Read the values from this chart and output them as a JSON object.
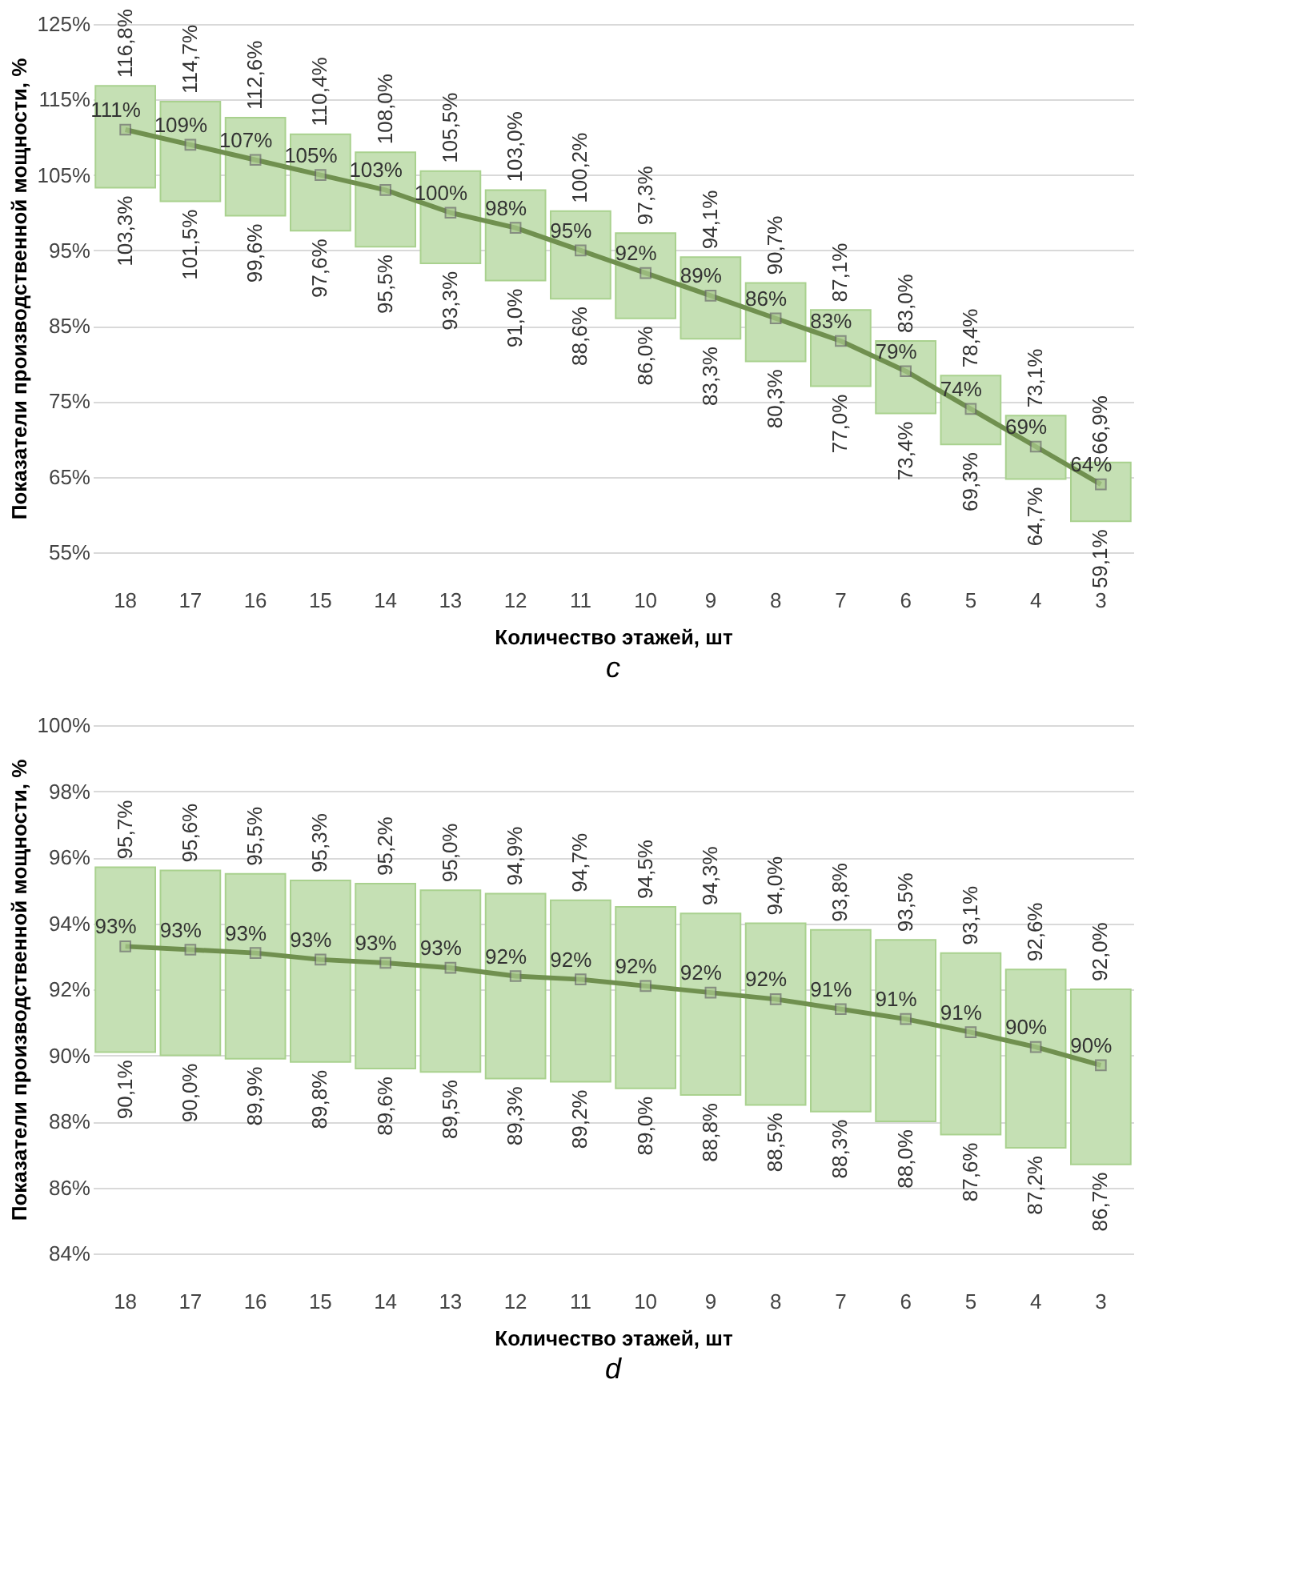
{
  "chart_data": [
    {
      "type": "bar",
      "title": "c",
      "xlabel": "Количество этажей, шт",
      "ylabel": "Показатели производственной мощности, %",
      "categories": [
        "18",
        "17",
        "16",
        "15",
        "14",
        "13",
        "12",
        "11",
        "10",
        "9",
        "8",
        "7",
        "6",
        "5",
        "4",
        "3"
      ],
      "series": [
        {
          "type": "bar",
          "color": "#c5e0b4",
          "base": [
            103.3,
            101.5,
            99.6,
            97.6,
            95.5,
            93.3,
            91.0,
            88.6,
            86.0,
            83.3,
            80.3,
            77.0,
            73.4,
            69.3,
            64.7,
            59.1
          ],
          "values": [
            13.5,
            13.2,
            13.0,
            12.8,
            12.5,
            12.2,
            12.0,
            11.6,
            11.3,
            10.8,
            10.4,
            10.1,
            9.6,
            9.1,
            8.4,
            7.8
          ]
        },
        {
          "type": "line",
          "color": "#70904f",
          "marker": "square",
          "values": [
            111,
            109,
            107,
            105,
            103,
            100,
            98,
            95,
            92,
            89,
            86,
            83,
            79,
            74,
            69,
            64
          ],
          "value_labels": [
            "111%",
            "109%",
            "107%",
            "105%",
            "103%",
            "100%",
            "98%",
            "95%",
            "92%",
            "89%",
            "86%",
            "83%",
            "79%",
            "74%",
            "69%",
            "64%"
          ]
        }
      ],
      "ylim": [
        55,
        125
      ],
      "yticks": [
        {
          "value": 55,
          "label": "55%"
        },
        {
          "value": 65,
          "label": "65%"
        },
        {
          "value": 75,
          "label": "75%"
        },
        {
          "value": 85,
          "label": "85%"
        },
        {
          "value": 95,
          "label": "95%"
        },
        {
          "value": 105,
          "label": "105%"
        },
        {
          "value": 115,
          "label": "115%"
        },
        {
          "value": 125,
          "label": "125%"
        }
      ],
      "grid": "y",
      "annotations": [
        {
          "text": "116,8%",
          "x": "18",
          "y": 116.8
        },
        {
          "text": "103,3%",
          "x": "18",
          "y": 103.3
        },
        {
          "text": "114,7%",
          "x": "17",
          "y": 114.7
        },
        {
          "text": "101,5%",
          "x": "17",
          "y": 101.5
        },
        {
          "text": "112,6%",
          "x": "16",
          "y": 112.6
        },
        {
          "text": "99,6%",
          "x": "16",
          "y": 99.6
        },
        {
          "text": "110,4%",
          "x": "15",
          "y": 110.4
        },
        {
          "text": "97,6%",
          "x": "15",
          "y": 97.6
        },
        {
          "text": "108,0%",
          "x": "14",
          "y": 108.0
        },
        {
          "text": "95,5%",
          "x": "14",
          "y": 95.5
        },
        {
          "text": "105,5%",
          "x": "13",
          "y": 105.5
        },
        {
          "text": "93,3%",
          "x": "13",
          "y": 93.3
        },
        {
          "text": "103,0%",
          "x": "12",
          "y": 103.0
        },
        {
          "text": "91,0%",
          "x": "12",
          "y": 91.0
        },
        {
          "text": "100,2%",
          "x": "11",
          "y": 100.2
        },
        {
          "text": "88,6%",
          "x": "11",
          "y": 88.6
        },
        {
          "text": "97,3%",
          "x": "10",
          "y": 97.3
        },
        {
          "text": "86,0%",
          "x": "10",
          "y": 86.0
        },
        {
          "text": "94,1%",
          "x": "9",
          "y": 94.1
        },
        {
          "text": "83,3%",
          "x": "9",
          "y": 83.3
        },
        {
          "text": "90,7%",
          "x": "8",
          "y": 90.7
        },
        {
          "text": "80,3%",
          "x": "8",
          "y": 80.3
        },
        {
          "text": "87,1%",
          "x": "7",
          "y": 87.1
        },
        {
          "text": "77,0%",
          "x": "7",
          "y": 77.0
        },
        {
          "text": "83,0%",
          "x": "6",
          "y": 83.0
        },
        {
          "text": "73,4%",
          "x": "6",
          "y": 73.4
        },
        {
          "text": "78,4%",
          "x": "5",
          "y": 78.4
        },
        {
          "text": "69,3%",
          "x": "5",
          "y": 69.3
        },
        {
          "text": "73,1%",
          "x": "4",
          "y": 73.1
        },
        {
          "text": "64,7%",
          "x": "4",
          "y": 64.7
        },
        {
          "text": "66,9%",
          "x": "3",
          "y": 66.9
        },
        {
          "text": "59,1%",
          "x": "3",
          "y": 59.1
        }
      ]
    },
    {
      "type": "bar",
      "title": "d",
      "xlabel": "Количество этажей, шт",
      "ylabel": "Показатели производственной мощности, %",
      "categories": [
        "18",
        "17",
        "16",
        "15",
        "14",
        "13",
        "12",
        "11",
        "10",
        "9",
        "8",
        "7",
        "6",
        "5",
        "4",
        "3"
      ],
      "series": [
        {
          "type": "bar",
          "color": "#c5e0b4",
          "base": [
            90.1,
            90.0,
            89.9,
            89.8,
            89.6,
            89.5,
            89.3,
            89.2,
            89.0,
            88.8,
            88.5,
            88.3,
            88.0,
            87.6,
            87.2,
            86.7
          ],
          "values": [
            5.6,
            5.6,
            5.6,
            5.5,
            5.6,
            5.5,
            5.6,
            5.5,
            5.5,
            5.5,
            5.5,
            5.5,
            5.5,
            5.5,
            5.4,
            5.3
          ]
        },
        {
          "type": "line",
          "color": "#70904f",
          "marker": "square",
          "values": [
            93.3,
            93.2,
            93.1,
            92.9,
            92.8,
            92.65,
            92.4,
            92.3,
            92.1,
            91.9,
            91.7,
            91.4,
            91.1,
            90.7,
            90.25,
            89.7
          ],
          "value_labels": [
            "93%",
            "93%",
            "93%",
            "93%",
            "93%",
            "93%",
            "92%",
            "92%",
            "92%",
            "92%",
            "92%",
            "91%",
            "91%",
            "91%",
            "90%",
            "90%"
          ]
        }
      ],
      "ylim": [
        84,
        100
      ],
      "yticks": [
        {
          "value": 84,
          "label": "84%"
        },
        {
          "value": 86,
          "label": "86%"
        },
        {
          "value": 88,
          "label": "88%"
        },
        {
          "value": 90,
          "label": "90%"
        },
        {
          "value": 92,
          "label": "92%"
        },
        {
          "value": 94,
          "label": "94%"
        },
        {
          "value": 96,
          "label": "96%"
        },
        {
          "value": 98,
          "label": "98%"
        },
        {
          "value": 100,
          "label": "100%"
        }
      ],
      "grid": "y",
      "annotations": [
        {
          "text": "95,7%",
          "x": "18",
          "y": 95.7
        },
        {
          "text": "90,1%",
          "x": "18",
          "y": 90.1
        },
        {
          "text": "95,6%",
          "x": "17",
          "y": 95.6
        },
        {
          "text": "90,0%",
          "x": "17",
          "y": 90.0
        },
        {
          "text": "95,5%",
          "x": "16",
          "y": 95.5
        },
        {
          "text": "89,9%",
          "x": "16",
          "y": 89.9
        },
        {
          "text": "95,3%",
          "x": "15",
          "y": 95.3
        },
        {
          "text": "89,8%",
          "x": "15",
          "y": 89.8
        },
        {
          "text": "95,2%",
          "x": "14",
          "y": 95.2
        },
        {
          "text": "89,6%",
          "x": "14",
          "y": 89.6
        },
        {
          "text": "95,0%",
          "x": "13",
          "y": 95.0
        },
        {
          "text": "89,5%",
          "x": "13",
          "y": 89.5
        },
        {
          "text": "94,9%",
          "x": "12",
          "y": 94.9
        },
        {
          "text": "89,3%",
          "x": "12",
          "y": 89.3
        },
        {
          "text": "94,7%",
          "x": "11",
          "y": 94.7
        },
        {
          "text": "89,2%",
          "x": "11",
          "y": 89.2
        },
        {
          "text": "94,5%",
          "x": "10",
          "y": 94.5
        },
        {
          "text": "89,0%",
          "x": "10",
          "y": 89.0
        },
        {
          "text": "94,3%",
          "x": "9",
          "y": 94.3
        },
        {
          "text": "88,8%",
          "x": "9",
          "y": 88.8
        },
        {
          "text": "94,0%",
          "x": "8",
          "y": 94.0
        },
        {
          "text": "88,5%",
          "x": "8",
          "y": 88.5
        },
        {
          "text": "93,8%",
          "x": "7",
          "y": 93.8
        },
        {
          "text": "88,3%",
          "x": "7",
          "y": 88.3
        },
        {
          "text": "93,5%",
          "x": "6",
          "y": 93.5
        },
        {
          "text": "88,0%",
          "x": "6",
          "y": 88.0
        },
        {
          "text": "93,1%",
          "x": "5",
          "y": 93.1
        },
        {
          "text": "87,6%",
          "x": "5",
          "y": 87.6
        },
        {
          "text": "92,6%",
          "x": "4",
          "y": 92.6
        },
        {
          "text": "87,2%",
          "x": "4",
          "y": 87.2
        },
        {
          "text": "92,0%",
          "x": "3",
          "y": 92.0
        },
        {
          "text": "86,7%",
          "x": "3",
          "y": 86.7
        }
      ]
    }
  ]
}
